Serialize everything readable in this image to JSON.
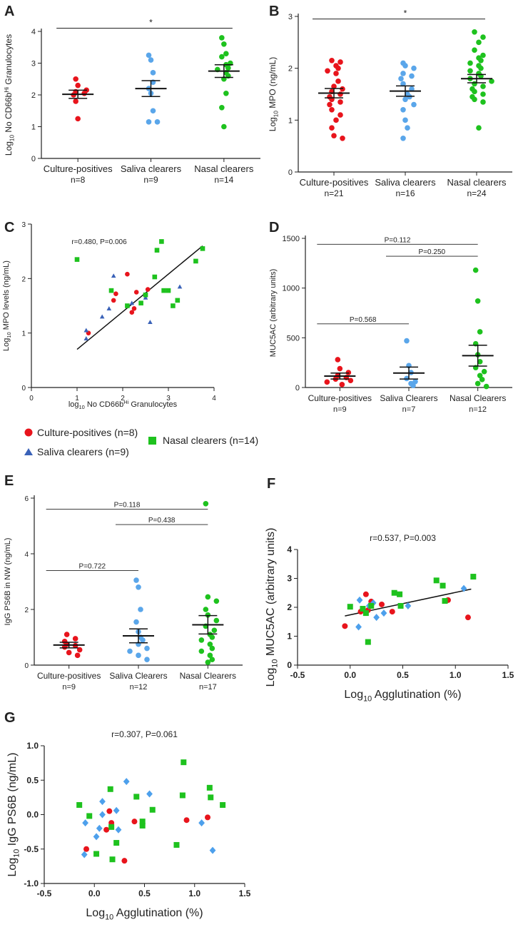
{
  "figure": {
    "legend": {
      "culture": "Culture-positives (n=8)",
      "saliva": "Saliva clearers (n=9)",
      "nasal": "Nasal clearers (n=14)"
    }
  },
  "colors": {
    "red": "#e8141c",
    "blue": "#5aa6ea",
    "green": "#1ec21e",
    "triangle": "#3a62b8",
    "diamond": "#4da0ec"
  },
  "chart_data": [
    {
      "id": "A",
      "type": "scatter",
      "label": "A",
      "ylabel_main": "Log",
      "ylabel_sub": "10",
      "ylabel_rest": " No CD66b",
      "ylabel_sup": "Hi",
      "ylabel_end": " Granulocytes",
      "ylim": [
        0,
        4
      ],
      "yticks": [
        "0",
        "1",
        "2",
        "3",
        "4"
      ],
      "categories": [
        "Culture-positives",
        "Saliva clearers",
        "Nasal clearers"
      ],
      "ns": [
        "n=8",
        "n=9",
        "n=14"
      ],
      "series": [
        {
          "name": "Culture-positives",
          "color": "red",
          "values": [
            2.5,
            2.3,
            2.15,
            2.1,
            2.05,
            2.0,
            1.8,
            1.25
          ],
          "mean": 2.02,
          "sem": 0.13
        },
        {
          "name": "Saliva clearers",
          "color": "blue",
          "values": [
            3.25,
            3.1,
            2.4,
            2.2,
            2.05,
            1.5,
            1.15,
            1.15,
            2.7
          ],
          "mean": 2.2,
          "sem": 0.25
        },
        {
          "name": "Nasal clearers",
          "color": "green",
          "values": [
            3.8,
            3.6,
            3.3,
            3.2,
            3.0,
            2.95,
            2.85,
            2.8,
            2.7,
            2.6,
            2.5,
            2.05,
            1.6,
            1.0
          ],
          "mean": 2.75,
          "sem": 0.2
        }
      ],
      "sig": {
        "from": 0,
        "to": 2,
        "y": 4.1,
        "text": "*"
      }
    },
    {
      "id": "B",
      "type": "scatter",
      "label": "B",
      "ylabel_main": "Log",
      "ylabel_sub": "10",
      "ylabel_rest": " MPO (ng/mL)",
      "ylim": [
        0,
        3
      ],
      "yticks": [
        "0",
        "1",
        "2",
        "3"
      ],
      "categories": [
        "Culture-positives",
        "Saliva clearers",
        "Nasal clearers"
      ],
      "ns": [
        "n=21",
        "n=16",
        "n=24"
      ],
      "series": [
        {
          "name": "Culture-positives",
          "color": "red",
          "values": [
            2.15,
            2.12,
            2.05,
            2.0,
            1.95,
            1.9,
            1.75,
            1.65,
            1.6,
            1.55,
            1.5,
            1.45,
            1.4,
            1.35,
            1.3,
            1.2,
            1.1,
            1.0,
            0.85,
            0.7,
            0.65
          ],
          "mean": 1.52,
          "sem": 0.09
        },
        {
          "name": "Saliva clearers",
          "color": "blue",
          "values": [
            2.1,
            2.05,
            2.0,
            1.9,
            1.85,
            1.8,
            1.7,
            1.6,
            1.5,
            1.45,
            1.4,
            1.3,
            1.2,
            1.0,
            0.85,
            0.65
          ],
          "mean": 1.56,
          "sem": 0.1
        },
        {
          "name": "Nasal clearers",
          "color": "green",
          "values": [
            2.7,
            2.6,
            2.5,
            2.35,
            2.25,
            2.2,
            2.15,
            2.1,
            2.05,
            2.0,
            1.95,
            1.9,
            1.85,
            1.8,
            1.75,
            1.7,
            1.65,
            1.6,
            1.55,
            1.5,
            1.45,
            1.4,
            1.35,
            0.85
          ],
          "mean": 1.8,
          "sem": 0.08
        }
      ],
      "sig": {
        "from": 0,
        "to": 2,
        "y": 2.95,
        "text": "*"
      }
    },
    {
      "id": "C",
      "type": "scatter",
      "label": "C",
      "annotation": "r=0.480, P=0.006",
      "xlabel_main": "log",
      "xlabel_sub": "10",
      "xlabel_rest": " No CD66b",
      "xlabel_sup": "Hi",
      "xlabel_end": " Granulocytes",
      "ylabel_main": "Log",
      "ylabel_sub": "10",
      "ylabel_rest": " MPO levels (ng/mL)",
      "xlim": [
        0,
        4
      ],
      "ylim": [
        0,
        3
      ],
      "xticks": [
        "0",
        "1",
        "2",
        "3",
        "4"
      ],
      "yticks": [
        "0",
        "1",
        "2",
        "3"
      ],
      "groups": [
        {
          "name": "Culture-positives",
          "shape": "circle",
          "color": "red",
          "points": [
            [
              1.25,
              1.0
            ],
            [
              1.8,
              1.6
            ],
            [
              1.85,
              1.72
            ],
            [
              2.1,
              2.08
            ],
            [
              2.2,
              1.38
            ],
            [
              2.25,
              1.45
            ],
            [
              2.3,
              1.75
            ],
            [
              2.55,
              1.8
            ]
          ]
        },
        {
          "name": "Saliva clearers",
          "shape": "triangle",
          "color": "triangle",
          "points": [
            [
              1.2,
              1.05
            ],
            [
              1.2,
              0.9
            ],
            [
              1.55,
              1.3
            ],
            [
              1.7,
              1.45
            ],
            [
              1.8,
              2.05
            ],
            [
              2.2,
              1.55
            ],
            [
              2.5,
              1.65
            ],
            [
              2.6,
              1.2
            ],
            [
              3.25,
              1.85
            ]
          ]
        },
        {
          "name": "Nasal clearers",
          "shape": "square",
          "color": "green",
          "points": [
            [
              1.0,
              2.35
            ],
            [
              1.75,
              1.78
            ],
            [
              2.1,
              1.5
            ],
            [
              2.4,
              1.55
            ],
            [
              2.5,
              1.7
            ],
            [
              2.7,
              2.03
            ],
            [
              2.75,
              2.52
            ],
            [
              2.85,
              2.68
            ],
            [
              2.9,
              1.78
            ],
            [
              3.0,
              1.78
            ],
            [
              3.1,
              1.5
            ],
            [
              3.2,
              1.6
            ],
            [
              3.6,
              2.32
            ],
            [
              3.75,
              2.55
            ]
          ]
        }
      ],
      "fit": [
        [
          1.0,
          0.7
        ],
        [
          3.75,
          2.6
        ]
      ]
    },
    {
      "id": "D",
      "type": "scatter",
      "label": "D",
      "ylabel_main": "MUC5AC (arbitrary units)",
      "ylim": [
        0,
        1500
      ],
      "yticks": [
        "0",
        "500",
        "1000",
        "1500"
      ],
      "categories": [
        "Culture-positives",
        "Saliva Clearers",
        "Nasal Clearers"
      ],
      "ns": [
        "n=9",
        "n=7",
        "n=12"
      ],
      "series": [
        {
          "name": "Culture-positives",
          "color": "red",
          "values": [
            280,
            190,
            150,
            120,
            100,
            85,
            70,
            55,
            30
          ],
          "mean": 115,
          "sem": 30
        },
        {
          "name": "Saliva Clearers",
          "color": "blue",
          "values": [
            470,
            220,
            150,
            90,
            60,
            40,
            20
          ],
          "mean": 145,
          "sem": 60
        },
        {
          "name": "Nasal Clearers",
          "color": "green",
          "values": [
            1180,
            870,
            560,
            440,
            330,
            260,
            200,
            160,
            120,
            80,
            40,
            10
          ],
          "mean": 320,
          "sem": 105
        }
      ],
      "brackets": [
        {
          "from": 0,
          "to": 1,
          "y": 640,
          "text": "P=0.568"
        },
        {
          "from": 1,
          "to": 2,
          "y": 1320,
          "text": "P=0.250"
        },
        {
          "from": 0,
          "to": 2,
          "y": 1440,
          "text": "P=0.112"
        }
      ]
    },
    {
      "id": "E",
      "type": "scatter",
      "label": "E",
      "ylabel_main": "IgG PS6B in NW (ng/mL)",
      "ylim": [
        0,
        6
      ],
      "yticks": [
        "0",
        "2",
        "4",
        "6"
      ],
      "categories": [
        "Culture-positives",
        "Saliva Clearers",
        "Nasal Clearers"
      ],
      "ns": [
        "n=9",
        "n=12",
        "n=17"
      ],
      "series": [
        {
          "name": "Culture-positives",
          "color": "red",
          "values": [
            1.1,
            0.95,
            0.85,
            0.75,
            0.7,
            0.65,
            0.55,
            0.45,
            0.35
          ],
          "mean": 0.72,
          "sem": 0.1
        },
        {
          "name": "Saliva Clearers",
          "color": "blue",
          "values": [
            3.05,
            2.8,
            2.0,
            1.55,
            1.2,
            1.0,
            0.9,
            0.75,
            0.6,
            0.5,
            0.35,
            0.2
          ],
          "mean": 1.05,
          "sem": 0.25
        },
        {
          "name": "Nasal Clearers",
          "color": "green",
          "values": [
            5.8,
            2.45,
            2.3,
            2.0,
            1.8,
            1.6,
            1.4,
            1.25,
            1.1,
            1.0,
            0.9,
            0.75,
            0.6,
            0.5,
            0.35,
            0.2,
            0.1
          ],
          "mean": 1.45,
          "sem": 0.33
        }
      ],
      "brackets": [
        {
          "from": 0,
          "to": 1,
          "y": 3.4,
          "text": "P=0.722"
        },
        {
          "from": 1,
          "to": 2,
          "y": 5.05,
          "text": "P=0.438"
        },
        {
          "from": 0,
          "to": 2,
          "y": 5.6,
          "text": "P=0.118"
        }
      ]
    },
    {
      "id": "F",
      "type": "scatter",
      "label": "F",
      "annotation": "r=0.537, P=0.003",
      "xlabel_main": "Log",
      "xlabel_sub": "10",
      "xlabel_rest": " Agglutination (%)",
      "ylabel_main": "Log",
      "ylabel_sub": "10",
      "ylabel_rest": " MUC5AC (arbitrary units)",
      "xlim": [
        -0.5,
        1.5
      ],
      "ylim": [
        0,
        4
      ],
      "xticks": [
        "-0.5",
        "0.0",
        "0.5",
        "1.0",
        "1.5"
      ],
      "yticks": [
        "0",
        "1",
        "2",
        "3",
        "4"
      ],
      "groups": [
        {
          "name": "Culture-positives",
          "shape": "circle",
          "color": "red",
          "points": [
            [
              -0.05,
              1.35
            ],
            [
              0.1,
              1.85
            ],
            [
              0.15,
              2.45
            ],
            [
              0.17,
              1.9
            ],
            [
              0.2,
              2.2
            ],
            [
              0.3,
              2.1
            ],
            [
              0.4,
              1.85
            ],
            [
              0.93,
              2.25
            ],
            [
              1.12,
              1.65
            ]
          ]
        },
        {
          "name": "Saliva clearers",
          "shape": "diamond",
          "color": "diamond",
          "points": [
            [
              0.08,
              1.32
            ],
            [
              0.09,
              2.25
            ],
            [
              0.18,
              2.05
            ],
            [
              0.22,
              2.15
            ],
            [
              0.25,
              1.65
            ],
            [
              0.32,
              1.8
            ],
            [
              0.55,
              2.05
            ],
            [
              1.08,
              2.65
            ]
          ]
        },
        {
          "name": "Nasal clearers",
          "shape": "square",
          "color": "green",
          "points": [
            [
              0.0,
              2.02
            ],
            [
              0.12,
              1.95
            ],
            [
              0.15,
              1.8
            ],
            [
              0.17,
              0.8
            ],
            [
              0.2,
              2.05
            ],
            [
              0.42,
              2.5
            ],
            [
              0.47,
              2.45
            ],
            [
              0.48,
              2.05
            ],
            [
              0.82,
              2.93
            ],
            [
              0.88,
              2.75
            ],
            [
              0.9,
              2.22
            ],
            [
              1.17,
              3.06
            ]
          ]
        }
      ],
      "fit": [
        [
          -0.05,
          1.7
        ],
        [
          1.15,
          2.63
        ]
      ]
    },
    {
      "id": "G",
      "type": "scatter",
      "label": "G",
      "annotation": "r=0.307, P=0.061",
      "xlabel_main": "Log",
      "xlabel_sub": "10",
      "xlabel_rest": " Agglutination (%)",
      "ylabel_main": "Log",
      "ylabel_sub": "10",
      "ylabel_rest": " IgG PS6B (ng/mL)",
      "xlim": [
        -0.5,
        1.5
      ],
      "ylim": [
        -1.0,
        1.0
      ],
      "xticks": [
        "-0.5",
        "0.0",
        "0.5",
        "1.0",
        "1.5"
      ],
      "yticks": [
        "-1.0",
        "-0.5",
        "0.0",
        "0.5",
        "1.0"
      ],
      "groups": [
        {
          "name": "Culture-positives",
          "shape": "circle",
          "color": "red",
          "points": [
            [
              -0.08,
              -0.5
            ],
            [
              0.12,
              -0.22
            ],
            [
              0.15,
              0.05
            ],
            [
              0.17,
              -0.12
            ],
            [
              0.3,
              -0.67
            ],
            [
              0.4,
              -0.1
            ],
            [
              0.92,
              -0.08
            ],
            [
              1.13,
              -0.04
            ]
          ]
        },
        {
          "name": "Saliva clearers",
          "shape": "diamond",
          "color": "diamond",
          "points": [
            [
              -0.1,
              -0.58
            ],
            [
              -0.09,
              -0.12
            ],
            [
              0.02,
              -0.32
            ],
            [
              0.05,
              -0.2
            ],
            [
              0.08,
              0.19
            ],
            [
              0.08,
              0.0
            ],
            [
              0.22,
              0.06
            ],
            [
              0.24,
              -0.22
            ],
            [
              0.32,
              0.48
            ],
            [
              0.55,
              0.3
            ],
            [
              1.07,
              -0.12
            ],
            [
              1.18,
              -0.52
            ]
          ]
        },
        {
          "name": "Nasal clearers",
          "shape": "square",
          "color": "green",
          "points": [
            [
              -0.15,
              0.14
            ],
            [
              -0.05,
              -0.02
            ],
            [
              0.02,
              -0.57
            ],
            [
              0.16,
              0.37
            ],
            [
              0.17,
              -0.18
            ],
            [
              0.18,
              -0.65
            ],
            [
              0.22,
              -0.41
            ],
            [
              0.42,
              0.26
            ],
            [
              0.48,
              -0.1
            ],
            [
              0.48,
              -0.16
            ],
            [
              0.58,
              0.07
            ],
            [
              0.82,
              -0.44
            ],
            [
              0.88,
              0.28
            ],
            [
              0.89,
              0.76
            ],
            [
              1.15,
              0.39
            ],
            [
              1.16,
              0.25
            ],
            [
              1.28,
              0.14
            ]
          ]
        }
      ]
    }
  ]
}
